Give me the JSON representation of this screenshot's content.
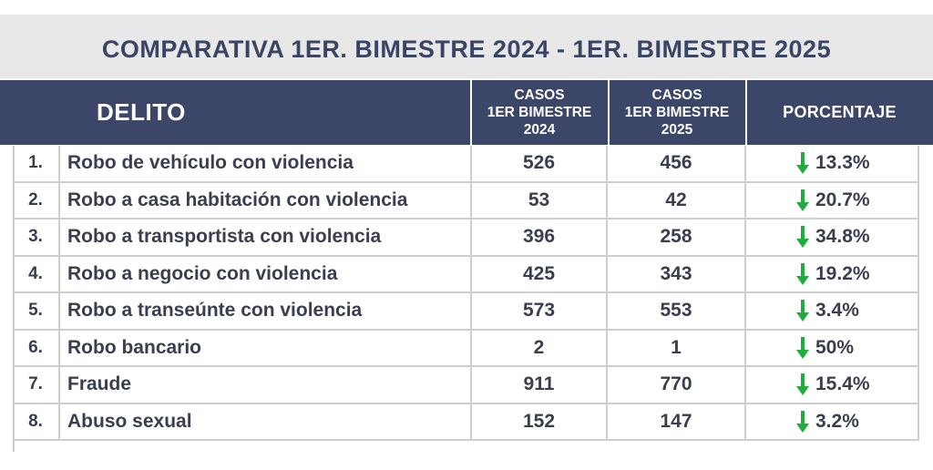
{
  "title": "COMPARATIVA 1ER. BIMESTRE 2024 - 1ER. BIMESTRE 2025",
  "header": {
    "delito": "DELITO",
    "col2024": [
      "CASOS",
      "1ER BIMESTRE",
      "2024"
    ],
    "col2025": [
      "CASOS",
      "1ER BIMESTRE",
      "2025"
    ],
    "porcentaje": "PORCENTAJE"
  },
  "colors": {
    "header_bg": "#3b4668",
    "title_text": "#3a4566",
    "arrow": "#1fae3e"
  },
  "rows": [
    {
      "num": "1.",
      "delito": "Robo de vehículo con violencia",
      "v2024": "526",
      "v2025": "456",
      "pct": "13.3%",
      "icon": "down-arrow-icon"
    },
    {
      "num": "2.",
      "delito": "Robo a casa habitación con violencia",
      "v2024": "53",
      "v2025": "42",
      "pct": "20.7%",
      "icon": "down-arrow-icon"
    },
    {
      "num": "3.",
      "delito": "Robo a transportista con violencia",
      "v2024": "396",
      "v2025": "258",
      "pct": "34.8%",
      "icon": "down-arrow-icon"
    },
    {
      "num": "4.",
      "delito": "Robo a negocio con violencia",
      "v2024": "425",
      "v2025": "343",
      "pct": "19.2%",
      "icon": "down-arrow-icon"
    },
    {
      "num": "5.",
      "delito": "Robo a transeúnte con violencia",
      "v2024": "573",
      "v2025": "553",
      "pct": "3.4%",
      "icon": "down-arrow-icon"
    },
    {
      "num": "6.",
      "delito": "Robo bancario",
      "v2024": "2",
      "v2025": "1",
      "pct": "50%",
      "icon": "down-arrow-icon"
    },
    {
      "num": "7.",
      "delito": "Fraude",
      "v2024": "911",
      "v2025": "770",
      "pct": "15.4%",
      "icon": "down-arrow-icon"
    },
    {
      "num": "8.",
      "delito": "Abuso sexual",
      "v2024": "152",
      "v2025": "147",
      "pct": "3.2%",
      "icon": "down-arrow-icon"
    }
  ]
}
